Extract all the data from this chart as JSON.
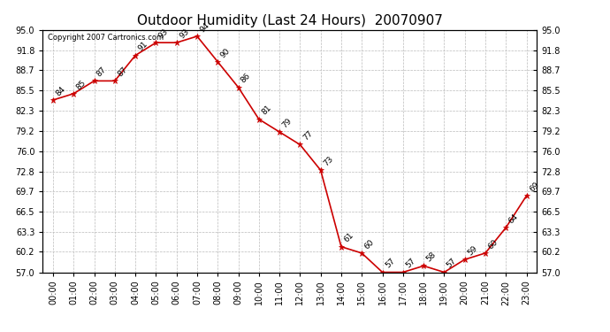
{
  "title": "Outdoor Humidity (Last 24 Hours)  20070907",
  "copyright": "Copyright 2007 Cartronics.com",
  "hours": [
    "00:00",
    "01:00",
    "02:00",
    "03:00",
    "04:00",
    "05:00",
    "06:00",
    "07:00",
    "08:00",
    "09:00",
    "10:00",
    "11:00",
    "12:00",
    "13:00",
    "14:00",
    "15:00",
    "16:00",
    "17:00",
    "18:00",
    "19:00",
    "20:00",
    "21:00",
    "22:00",
    "23:00"
  ],
  "values": [
    84,
    85,
    87,
    87,
    91,
    93,
    93,
    94,
    90,
    86,
    81,
    79,
    77,
    73,
    61,
    60,
    57,
    57,
    58,
    57,
    59,
    60,
    64,
    69
  ],
  "line_color": "#cc0000",
  "marker_color": "#cc0000",
  "bg_color": "#ffffff",
  "grid_color": "#bbbbbb",
  "yticks": [
    57.0,
    60.2,
    63.3,
    66.5,
    69.7,
    72.8,
    76.0,
    79.2,
    82.3,
    85.5,
    88.7,
    91.8,
    95.0
  ],
  "ylim": [
    57.0,
    95.0
  ],
  "title_fontsize": 11,
  "label_fontsize": 7,
  "annotation_fontsize": 6.5
}
